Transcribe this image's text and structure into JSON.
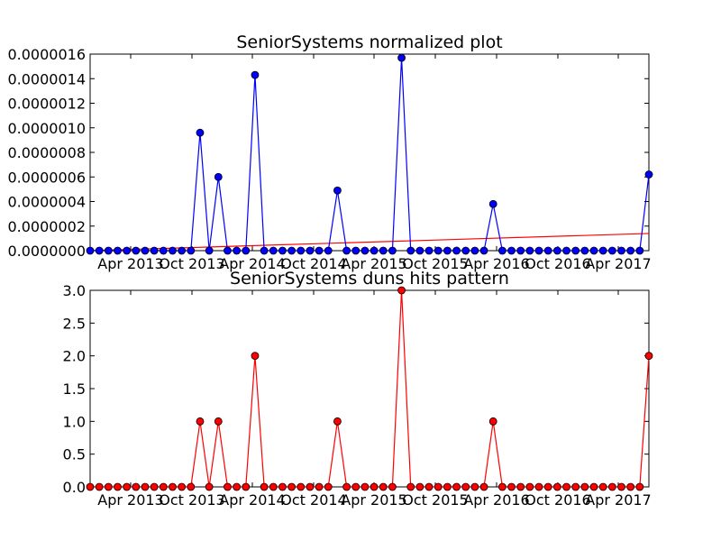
{
  "chart_data": [
    {
      "type": "line",
      "title": "SeniorSystems normalized plot",
      "xlabel": "",
      "ylabel": "",
      "x_tick_labels": [
        "Apr 2013",
        "Oct 2013",
        "Apr 2014",
        "Oct 2014",
        "Apr 2015",
        "Oct 2015",
        "Apr 2016",
        "Oct 2016",
        "Apr 2017"
      ],
      "y_tick_labels": [
        "0.0000000",
        "0.0000002",
        "0.0000004",
        "0.0000006",
        "0.0000008",
        "0.0000010",
        "0.0000012",
        "0.0000014",
        "0.0000016"
      ],
      "ylim": [
        0,
        1.6e-06
      ],
      "grid": false,
      "colors": {
        "series": "#0000ff",
        "marker": "#0000ff",
        "trend": "#ff0000"
      },
      "series": [
        {
          "values": [
            0,
            0,
            0,
            0,
            0,
            0,
            0,
            0,
            0,
            0,
            0,
            0,
            9.6e-07,
            0,
            6e-07,
            0,
            0,
            0,
            1.43e-06,
            0,
            0,
            0,
            0,
            0,
            0,
            0,
            0,
            4.9e-07,
            0,
            0,
            0,
            0,
            0,
            0,
            1.57e-06,
            0,
            0,
            0,
            0,
            0,
            0,
            0,
            0,
            0,
            3.8e-07,
            0,
            0,
            0,
            0,
            0,
            0,
            0,
            0,
            0,
            0,
            0,
            0,
            0,
            0,
            0,
            0,
            6.2e-07
          ]
        }
      ],
      "trend_line": {
        "start": 0.0,
        "end": 1.4e-07
      }
    },
    {
      "type": "line",
      "title": "SeniorSystems duns hits pattern",
      "xlabel": "",
      "ylabel": "",
      "x_tick_labels": [
        "Apr 2013",
        "Oct 2013",
        "Apr 2014",
        "Oct 2014",
        "Apr 2015",
        "Oct 2015",
        "Apr 2016",
        "Oct 2016",
        "Apr 2017"
      ],
      "y_tick_labels": [
        "0.0",
        "0.5",
        "1.0",
        "1.5",
        "2.0",
        "2.5",
        "3.0"
      ],
      "ylim": [
        0,
        3
      ],
      "grid": false,
      "colors": {
        "series": "#ff0000",
        "marker": "#ff0000"
      },
      "series": [
        {
          "values": [
            0,
            0,
            0,
            0,
            0,
            0,
            0,
            0,
            0,
            0,
            0,
            0,
            1,
            0,
            1,
            0,
            0,
            0,
            2,
            0,
            0,
            0,
            0,
            0,
            0,
            0,
            0,
            1,
            0,
            0,
            0,
            0,
            0,
            0,
            3,
            0,
            0,
            0,
            0,
            0,
            0,
            0,
            0,
            0,
            1,
            0,
            0,
            0,
            0,
            0,
            0,
            0,
            0,
            0,
            0,
            0,
            0,
            0,
            0,
            0,
            0,
            2
          ]
        }
      ]
    }
  ]
}
